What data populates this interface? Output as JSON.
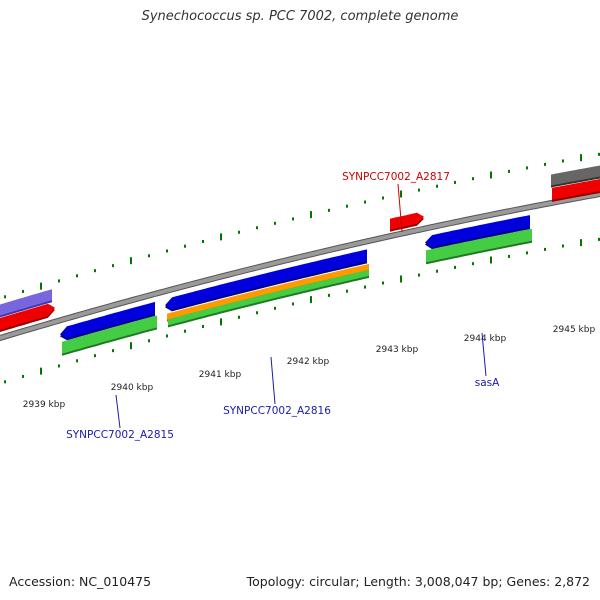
{
  "title": "Synechococcus sp. PCC 7002, complete genome",
  "footer": {
    "accession": "Accession: NC_010475",
    "topology": "Topology: circular; Length: 3,008,047 bp; Genes: 2,872"
  },
  "ticks": [
    "2939 kbp",
    "2940 kbp",
    "2941 kbp",
    "2942 kbp",
    "2943 kbp",
    "2944 kbp",
    "2945 kbp"
  ],
  "gene_labels": [
    {
      "text": "SYNPCC7002_A2817",
      "color": "#cc0000"
    },
    {
      "text": "SYNPCC7002_A2815",
      "color": "#1a1aaa"
    },
    {
      "text": "SYNPCC7002_A2816",
      "color": "#1a1aaa"
    },
    {
      "text": "sasA",
      "color": "#1a1aaa"
    }
  ],
  "colors": {
    "backbone": "#888888",
    "gene_red": "#ee0000",
    "gene_blue": "#0000dd",
    "gene_green": "#44cc44",
    "gene_orange": "#ff9900",
    "gene_violet": "#7766dd",
    "gene_gray": "#666666",
    "tick_green": "#007700"
  }
}
